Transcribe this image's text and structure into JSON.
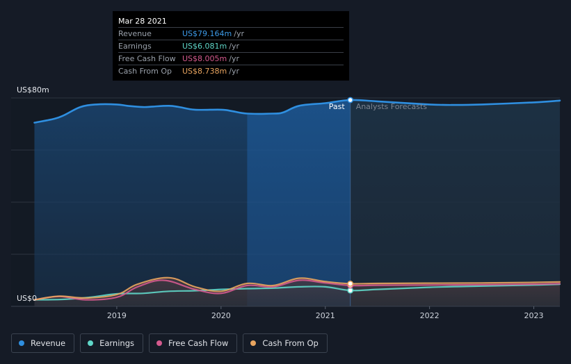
{
  "colors": {
    "background": "#151b26",
    "revenue": "#2f8fe0",
    "earnings": "#5fd6c8",
    "free_cash_flow": "#d45a8e",
    "cash_from_op": "#e8a45f",
    "grid": "#2c3440"
  },
  "tooltip": {
    "date": "Mar 28 2021",
    "rows": [
      {
        "label": "Revenue",
        "value": "US$79.164m",
        "unit": "/yr",
        "color": "#3d9be9"
      },
      {
        "label": "Earnings",
        "value": "US$6.081m",
        "unit": "/yr",
        "color": "#5fd6c8"
      },
      {
        "label": "Free Cash Flow",
        "value": "US$8.005m",
        "unit": "/yr",
        "color": "#d45a8e"
      },
      {
        "label": "Cash From Op",
        "value": "US$8.738m",
        "unit": "/yr",
        "color": "#e8a45f"
      }
    ]
  },
  "legend": [
    {
      "label": "Revenue",
      "color": "#2f8fe0"
    },
    {
      "label": "Earnings",
      "color": "#5fd6c8"
    },
    {
      "label": "Free Cash Flow",
      "color": "#d45a8e"
    },
    {
      "label": "Cash From Op",
      "color": "#e8a45f"
    }
  ],
  "chart_data": {
    "type": "line",
    "title": "",
    "xlabel": "",
    "ylabel": "",
    "y_axis_labels": [
      "US$80m",
      "US$0"
    ],
    "ylim": [
      0,
      80
    ],
    "xlim": [
      2018.2,
      2023.25
    ],
    "x_ticks": [
      2019,
      2020,
      2021,
      2022,
      2023
    ],
    "x_tick_labels": [
      "2019",
      "2020",
      "2021",
      "2022",
      "2023"
    ],
    "past_label": "Past",
    "forecast_label": "Analysts Forecasts",
    "past_forecast_boundary": 2021.24,
    "highlight_start": 2020.25,
    "grid": true,
    "legend_position": "bottom-left",
    "series": [
      {
        "name": "Revenue",
        "x": [
          2018.21,
          2018.4,
          2018.5,
          2018.65,
          2018.8,
          2019.0,
          2019.1,
          2019.25,
          2019.35,
          2019.5,
          2019.6,
          2019.75,
          2020.0,
          2020.1,
          2020.25,
          2020.5,
          2020.6,
          2020.75,
          2021.0,
          2021.24,
          2021.5,
          2022.0,
          2022.25,
          2022.5,
          2023.0,
          2023.25
        ],
        "values": [
          70.5,
          72,
          73.5,
          76.5,
          77.5,
          77.5,
          77,
          76.5,
          76.7,
          77,
          76.5,
          75.5,
          75.5,
          75,
          74,
          74,
          74.5,
          77,
          78,
          79.2,
          78.7,
          77.5,
          77.3,
          77.5,
          78.3,
          79
        ]
      },
      {
        "name": "Earnings",
        "x": [
          2018.21,
          2018.5,
          2018.75,
          2019.0,
          2019.25,
          2019.5,
          2019.75,
          2020.0,
          2020.25,
          2020.5,
          2020.75,
          2021.0,
          2021.24,
          2021.5,
          2022.0,
          2022.5,
          2023.0,
          2023.25
        ],
        "values": [
          2.5,
          2.7,
          3.5,
          4.8,
          5,
          5.8,
          6,
          6.5,
          6.8,
          7,
          7.5,
          7.5,
          6.1,
          6.5,
          7.3,
          7.8,
          8.2,
          8.5
        ]
      },
      {
        "name": "Free Cash Flow",
        "x": [
          2018.21,
          2018.45,
          2018.7,
          2019.0,
          2019.2,
          2019.45,
          2019.75,
          2020.0,
          2020.25,
          2020.5,
          2020.75,
          2021.0,
          2021.24,
          2021.5,
          2022.0,
          2022.5,
          2023.0,
          2023.25
        ],
        "values": [
          2.5,
          3.8,
          2.5,
          3.5,
          7.5,
          10,
          6.5,
          5,
          8,
          7.5,
          10,
          9,
          8,
          8.1,
          8.2,
          8.3,
          8.5,
          8.7
        ]
      },
      {
        "name": "Cash From Op",
        "x": [
          2018.21,
          2018.45,
          2018.7,
          2019.0,
          2019.2,
          2019.5,
          2019.75,
          2020.0,
          2020.25,
          2020.5,
          2020.75,
          2021.0,
          2021.24,
          2021.5,
          2022.0,
          2022.5,
          2023.0,
          2023.25
        ],
        "values": [
          2.5,
          3.9,
          3.2,
          4.5,
          8.5,
          11,
          7.5,
          5.8,
          8.8,
          8,
          10.8,
          9.5,
          8.7,
          8.8,
          8.9,
          9,
          9.2,
          9.4
        ]
      }
    ]
  }
}
